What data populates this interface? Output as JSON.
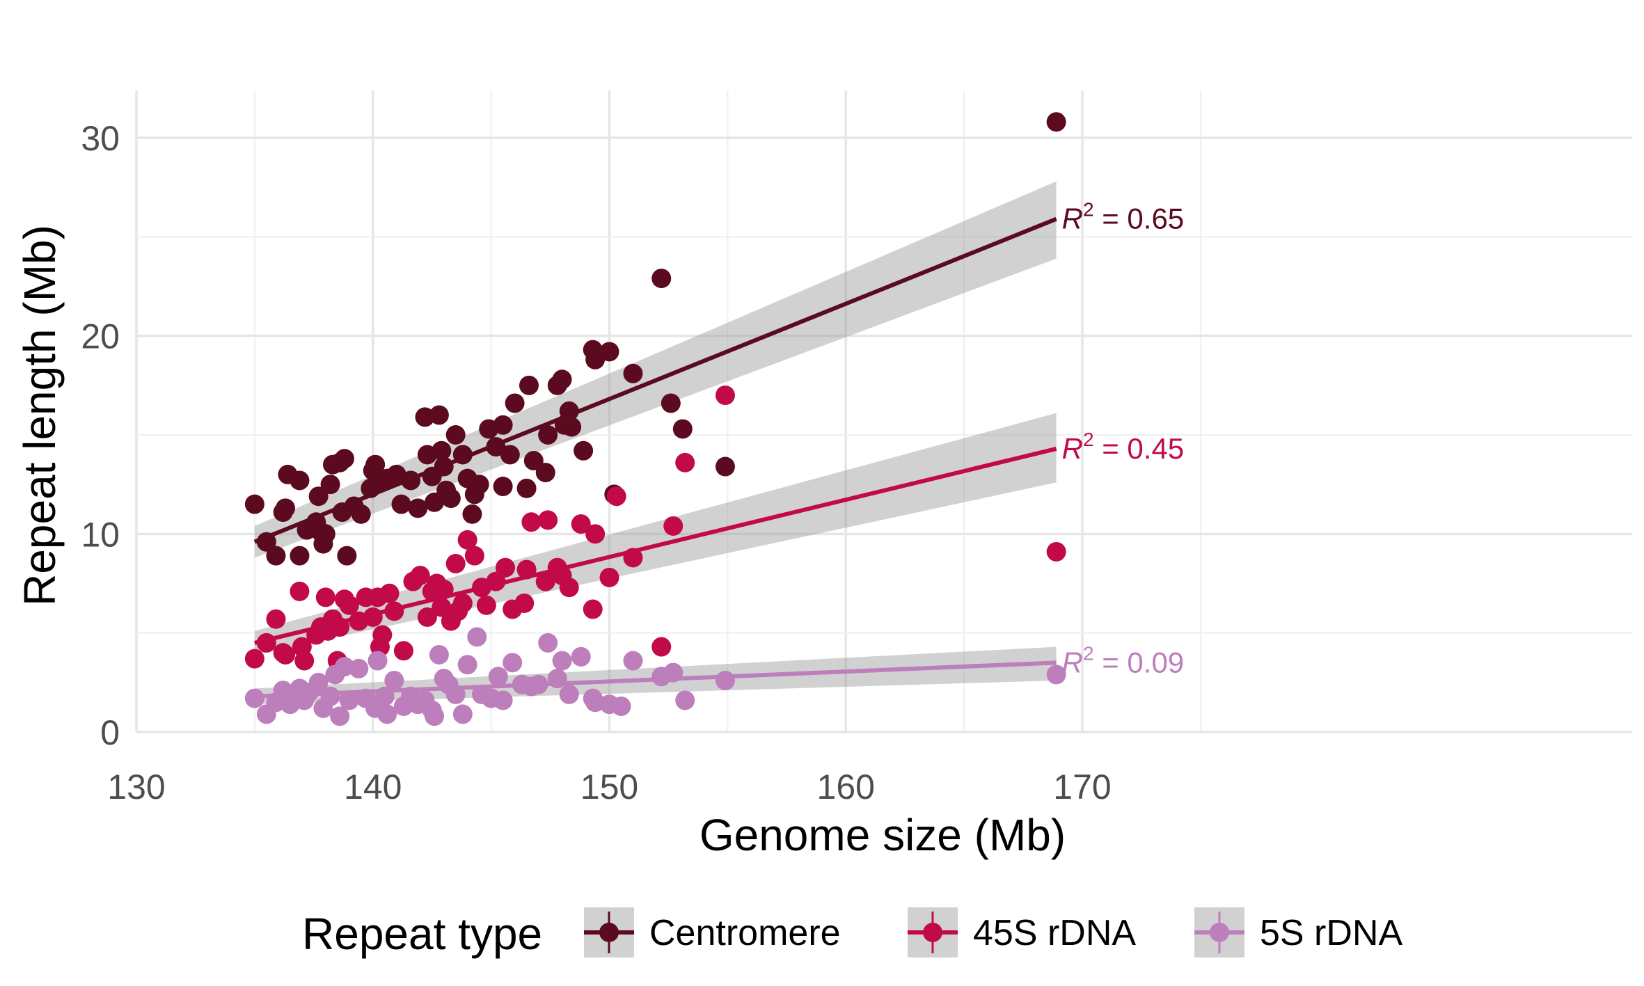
{
  "chart_data": {
    "type": "scatter",
    "xlabel": "Genome size (Mb)",
    "ylabel": "Repeat length (Mb)",
    "xlim": [
      130,
      175
    ],
    "ylim": [
      0,
      31
    ],
    "xticks": [
      130,
      140,
      150,
      160,
      170
    ],
    "yticks": [
      0,
      10,
      20,
      30
    ],
    "grid": true,
    "legend": {
      "title": "Repeat type",
      "position": "bottom"
    },
    "series": [
      {
        "name": "Centromere",
        "color": "#5b0a1f",
        "r2": "0.65",
        "fit": {
          "x": [
            135,
            168.9
          ],
          "y": [
            9.6,
            25.9
          ],
          "ci": [
            [
              8.8,
              10.4
            ],
            [
              23.9,
              27.8
            ]
          ]
        },
        "points": [
          [
            135,
            11.5
          ],
          [
            135.5,
            9.6
          ],
          [
            135.9,
            8.9
          ],
          [
            136.2,
            11.1
          ],
          [
            136.3,
            11.3
          ],
          [
            136.4,
            13
          ],
          [
            136.9,
            12.7
          ],
          [
            136.9,
            8.9
          ],
          [
            137.2,
            10.2
          ],
          [
            137.6,
            10.6
          ],
          [
            137.7,
            11.9
          ],
          [
            137.8,
            10.1
          ],
          [
            137.9,
            9.5
          ],
          [
            138,
            10
          ],
          [
            138.2,
            12.5
          ],
          [
            138.3,
            13.5
          ],
          [
            138.6,
            13.6
          ],
          [
            138.7,
            11.1
          ],
          [
            138.8,
            13.8
          ],
          [
            138.9,
            8.9
          ],
          [
            139.2,
            11.4
          ],
          [
            139.5,
            11
          ],
          [
            139.9,
            12.3
          ],
          [
            140,
            13.2
          ],
          [
            140.1,
            13.5
          ],
          [
            140.3,
            12.6
          ],
          [
            140.6,
            12.8
          ],
          [
            141,
            13
          ],
          [
            141.2,
            11.5
          ],
          [
            141.6,
            12.7
          ],
          [
            141.9,
            11.3
          ],
          [
            142.2,
            15.9
          ],
          [
            142.3,
            14
          ],
          [
            142.5,
            12.9
          ],
          [
            142.6,
            11.6
          ],
          [
            142.8,
            16
          ],
          [
            142.9,
            14.2
          ],
          [
            143,
            13.4
          ],
          [
            143.1,
            12.2
          ],
          [
            143.3,
            11.8
          ],
          [
            143.5,
            15
          ],
          [
            143.8,
            14
          ],
          [
            144,
            12.8
          ],
          [
            144.2,
            11
          ],
          [
            144.3,
            12
          ],
          [
            144.5,
            12.5
          ],
          [
            144.9,
            15.3
          ],
          [
            145.2,
            14.4
          ],
          [
            145.5,
            15.5
          ],
          [
            145.5,
            12.4
          ],
          [
            145.8,
            14
          ],
          [
            146,
            16.6
          ],
          [
            146.5,
            12.3
          ],
          [
            146.6,
            17.5
          ],
          [
            146.8,
            13.7
          ],
          [
            147.3,
            13.1
          ],
          [
            147.4,
            15
          ],
          [
            147.8,
            17.5
          ],
          [
            148,
            17.8
          ],
          [
            148.1,
            15.5
          ],
          [
            148.3,
            16.2
          ],
          [
            148.4,
            15.4
          ],
          [
            148.9,
            14.2
          ],
          [
            149.3,
            19.3
          ],
          [
            149.4,
            18.8
          ],
          [
            150,
            19.2
          ],
          [
            150.2,
            12
          ],
          [
            151,
            18.1
          ],
          [
            152.2,
            22.9
          ],
          [
            152.6,
            16.6
          ],
          [
            153.1,
            15.3
          ],
          [
            154.9,
            13.4
          ],
          [
            168.9,
            30.8
          ]
        ]
      },
      {
        "name": "45S rDNA",
        "color": "#c2094a",
        "r2": "0.45",
        "fit": {
          "x": [
            135,
            168.9
          ],
          "y": [
            4.5,
            14.3
          ],
          "ci": [
            [
              3.9,
              5.1
            ],
            [
              12.6,
              16.1
            ]
          ]
        },
        "points": [
          [
            135,
            3.7
          ],
          [
            135.5,
            4.5
          ],
          [
            135.9,
            5.7
          ],
          [
            136.2,
            4
          ],
          [
            136.3,
            3.9
          ],
          [
            136.9,
            7.1
          ],
          [
            137,
            4.3
          ],
          [
            137.1,
            3.6
          ],
          [
            137.6,
            4.9
          ],
          [
            137.8,
            5.3
          ],
          [
            138,
            6.8
          ],
          [
            138.1,
            5.1
          ],
          [
            138.3,
            5.7
          ],
          [
            138.5,
            3.6
          ],
          [
            138.6,
            5.3
          ],
          [
            138.8,
            6.7
          ],
          [
            139,
            6.4
          ],
          [
            139.4,
            5.6
          ],
          [
            139.7,
            6.8
          ],
          [
            140,
            5.8
          ],
          [
            140.2,
            6.8
          ],
          [
            140.3,
            4.3
          ],
          [
            140.4,
            4.9
          ],
          [
            140.7,
            7
          ],
          [
            140.9,
            6.1
          ],
          [
            141.3,
            4.1
          ],
          [
            141.7,
            7.6
          ],
          [
            142,
            7.9
          ],
          [
            142.3,
            5.8
          ],
          [
            142.5,
            7.1
          ],
          [
            142.7,
            7.5
          ],
          [
            142.9,
            6.3
          ],
          [
            143,
            7.2
          ],
          [
            143.3,
            5.6
          ],
          [
            143.5,
            8.5
          ],
          [
            143.6,
            6.1
          ],
          [
            143.8,
            6.5
          ],
          [
            144,
            9.7
          ],
          [
            144.3,
            8.9
          ],
          [
            144.6,
            7.3
          ],
          [
            144.8,
            6.4
          ],
          [
            145.2,
            7.6
          ],
          [
            145.6,
            8.3
          ],
          [
            145.9,
            6.2
          ],
          [
            146.4,
            6.5
          ],
          [
            146.5,
            8.2
          ],
          [
            146.7,
            10.6
          ],
          [
            147.3,
            7.6
          ],
          [
            147.4,
            10.7
          ],
          [
            147.8,
            8.3
          ],
          [
            148,
            7.9
          ],
          [
            148.3,
            7.3
          ],
          [
            148.8,
            10.5
          ],
          [
            149.3,
            6.2
          ],
          [
            149.4,
            10
          ],
          [
            150,
            7.8
          ],
          [
            150.3,
            11.9
          ],
          [
            151,
            8.8
          ],
          [
            152.2,
            4.3
          ],
          [
            152.7,
            10.4
          ],
          [
            153.2,
            13.6
          ],
          [
            154.9,
            17
          ],
          [
            168.9,
            9.1
          ]
        ]
      },
      {
        "name": "5S rDNA",
        "color": "#bd7ebc",
        "r2": "0.09",
        "fit": {
          "x": [
            135,
            168.9
          ],
          "y": [
            1.8,
            3.5
          ],
          "ci": [
            [
              1.4,
              2.2
            ],
            [
              2.6,
              4.3
            ]
          ]
        },
        "points": [
          [
            135,
            1.7
          ],
          [
            135.5,
            0.9
          ],
          [
            135.9,
            1.5
          ],
          [
            136.2,
            2.1
          ],
          [
            136.5,
            1.4
          ],
          [
            136.9,
            2.2
          ],
          [
            137.1,
            1.6
          ],
          [
            137.3,
            2
          ],
          [
            137.7,
            2.5
          ],
          [
            137.9,
            1.2
          ],
          [
            138.2,
            1.8
          ],
          [
            138.4,
            2.9
          ],
          [
            138.6,
            0.8
          ],
          [
            138.8,
            3.3
          ],
          [
            139,
            1.6
          ],
          [
            139.4,
            3.2
          ],
          [
            139.7,
            1.7
          ],
          [
            140.1,
            1.2
          ],
          [
            140.2,
            3.6
          ],
          [
            140.5,
            1.8
          ],
          [
            140.6,
            0.9
          ],
          [
            140.9,
            2.6
          ],
          [
            141.3,
            1.3
          ],
          [
            141.6,
            1.8
          ],
          [
            141.9,
            1.4
          ],
          [
            142.2,
            1.6
          ],
          [
            142.5,
            1.1
          ],
          [
            142.6,
            0.8
          ],
          [
            142.8,
            3.9
          ],
          [
            143,
            2.7
          ],
          [
            143.2,
            2.4
          ],
          [
            143.5,
            1.9
          ],
          [
            143.8,
            0.9
          ],
          [
            144,
            3.4
          ],
          [
            144.4,
            4.8
          ],
          [
            144.6,
            1.9
          ],
          [
            145,
            1.7
          ],
          [
            145.3,
            2.8
          ],
          [
            145.5,
            1.6
          ],
          [
            145.9,
            3.5
          ],
          [
            146.3,
            2.4
          ],
          [
            146.7,
            2.3
          ],
          [
            147,
            2.4
          ],
          [
            147.4,
            4.5
          ],
          [
            147.8,
            2.7
          ],
          [
            148,
            3.6
          ],
          [
            148.3,
            1.9
          ],
          [
            148.8,
            3.8
          ],
          [
            149.3,
            1.7
          ],
          [
            149.4,
            1.5
          ],
          [
            150,
            1.4
          ],
          [
            150.5,
            1.3
          ],
          [
            151,
            3.6
          ],
          [
            152.2,
            2.8
          ],
          [
            152.7,
            3
          ],
          [
            153.2,
            1.6
          ],
          [
            154.9,
            2.6
          ],
          [
            168.9,
            2.9
          ]
        ]
      }
    ]
  }
}
